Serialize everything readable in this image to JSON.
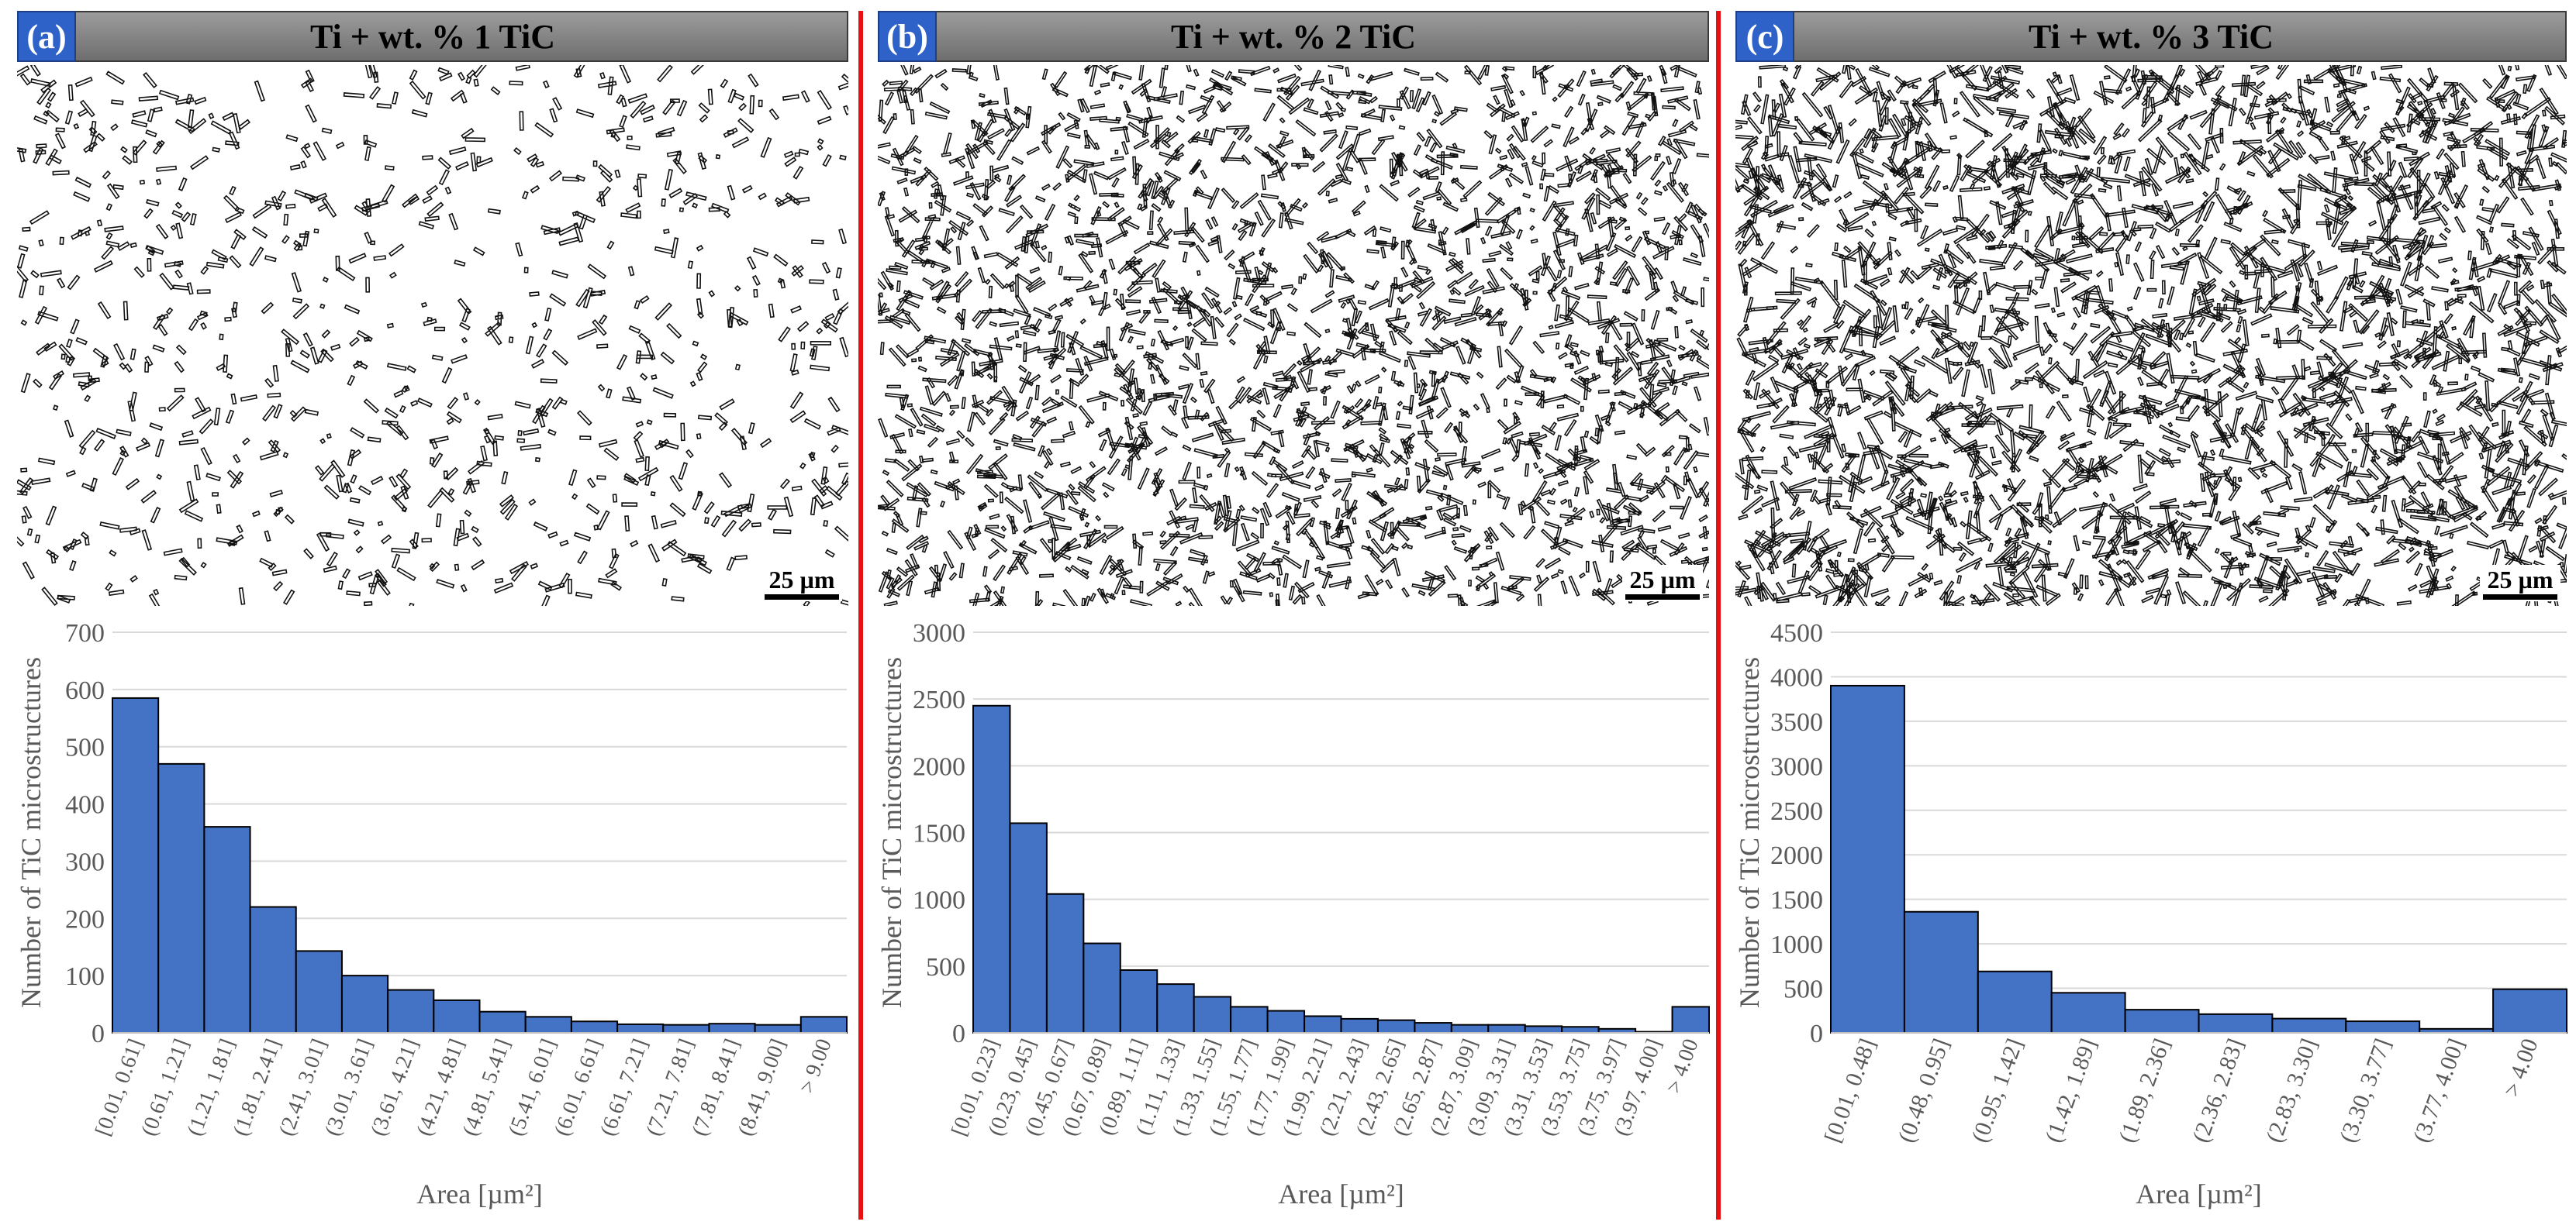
{
  "panels": [
    {
      "tag": "(a)",
      "title": "Ti + wt. % 1 TiC",
      "scale_label": "25 µm",
      "chart_data": {
        "type": "bar",
        "categories": [
          "[0.01, 0.61]",
          "(0.61, 1.21]",
          "(1.21, 1.81]",
          "(1.81, 2.41]",
          "(2.41, 3.01]",
          "(3.01, 3.61]",
          "(3.61, 4.21]",
          "(4.21, 4.81]",
          "(4.81, 5.41]",
          "(5.41, 6.01]",
          "(6.01, 6.61]",
          "(6.61, 7.21]",
          "(7.21, 7.81]",
          "(7.81, 8.41]",
          "(8.41, 9.00]",
          "> 9.00"
        ],
        "values": [
          585,
          470,
          360,
          220,
          143,
          100,
          75,
          57,
          37,
          28,
          20,
          15,
          14,
          16,
          14,
          28
        ],
        "xlabel": "Area [µm²]",
        "ylabel": "Number of TiC microstructures",
        "ylim": [
          0,
          700
        ],
        "yticks": [
          0,
          100,
          200,
          300,
          400,
          500,
          600,
          700
        ],
        "grid": true,
        "bar_color": "#4472c4"
      }
    },
    {
      "tag": "(b)",
      "title": "Ti + wt. % 2 TiC",
      "scale_label": "25 µm",
      "chart_data": {
        "type": "bar",
        "categories": [
          "[0.01, 0.23]",
          "(0.23, 0.45]",
          "(0.45, 0.67]",
          "(0.67, 0.89]",
          "(0.89, 1.11]",
          "(1.11, 1.33]",
          "(1.33, 1.55]",
          "(1.55, 1.77]",
          "(1.77, 1.99]",
          "(1.99, 2.21]",
          "(2.21, 2.43]",
          "(2.43, 2.65]",
          "(2.65, 2.87]",
          "(2.87, 3.09]",
          "(3.09, 3.31]",
          "(3.31, 3.53]",
          "(3.53, 3.75]",
          "(3.75, 3.97]",
          "(3.97, 4.00]",
          "> 4.00"
        ],
        "values": [
          2450,
          1570,
          1040,
          670,
          470,
          365,
          270,
          195,
          165,
          125,
          105,
          95,
          75,
          60,
          60,
          50,
          45,
          30,
          8,
          195
        ],
        "xlabel": "Area [µm²]",
        "ylabel": "Number of TiC microstructures",
        "ylim": [
          0,
          3000
        ],
        "yticks": [
          0,
          500,
          1000,
          1500,
          2000,
          2500,
          3000
        ],
        "grid": true,
        "bar_color": "#4472c4"
      }
    },
    {
      "tag": "(c)",
      "title": "Ti + wt. % 3 TiC",
      "scale_label": "25 µm",
      "chart_data": {
        "type": "bar",
        "categories": [
          "[0.01, 0.48]",
          "(0.48, 0.95]",
          "(0.95, 1.42]",
          "(1.42, 1.89]",
          "(1.89, 2.36]",
          "(2.36, 2.83]",
          "(2.83, 3.30]",
          "(3.30, 3.77]",
          "(3.77, 4.00]",
          "> 4.00"
        ],
        "values": [
          3900,
          1360,
          690,
          450,
          260,
          210,
          160,
          130,
          45,
          490
        ],
        "xlabel": "Area [µm²]",
        "ylabel": "Number of TiC microstructures",
        "ylim": [
          0,
          4500
        ],
        "yticks": [
          0,
          500,
          1000,
          1500,
          2000,
          2500,
          3000,
          3500,
          4000,
          4500
        ],
        "grid": true,
        "bar_color": "#4472c4"
      }
    }
  ],
  "colors": {
    "divider": "#e81010",
    "tag_bg": "#2f62c8",
    "bar": "#4472c4",
    "axis_text": "#595959"
  }
}
